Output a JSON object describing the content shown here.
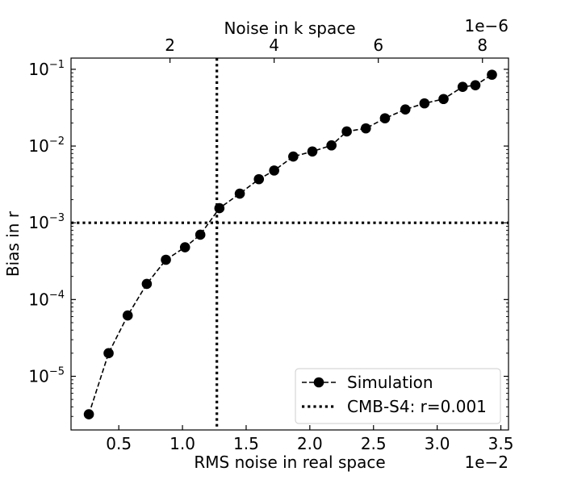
{
  "chart_data": {
    "type": "line",
    "title": "",
    "xlabel": "RMS noise in real space",
    "x_offset_label": "1e−2",
    "x_scale": 0.01,
    "top_xlabel": "Noise in k space",
    "top_offset_label": "1e−6",
    "top_scale": 1e-06,
    "ylabel": "Bias in r",
    "yscale": "log",
    "xlim": [
      0.00125,
      0.0356
    ],
    "ylim": [
      2e-06,
      0.14
    ],
    "top_xlim": [
      1e-07,
      8.5e-06
    ],
    "xticks": [
      0.005,
      0.01,
      0.015,
      0.02,
      0.025,
      0.03,
      0.035
    ],
    "xtick_labels": [
      "0.5",
      "1.0",
      "1.5",
      "2.0",
      "2.5",
      "3.0",
      "3.5"
    ],
    "top_xticks": [
      2e-06,
      4e-06,
      6e-06,
      8e-06
    ],
    "top_xtick_labels": [
      "2",
      "4",
      "6",
      "8"
    ],
    "yticks": [
      1e-05,
      0.0001,
      0.001,
      0.01,
      0.1
    ],
    "ytick_exponents": [
      "−5",
      "−4",
      "−3",
      "−2",
      "−1"
    ],
    "grid": false,
    "legend_position": "lower-right",
    "series": [
      {
        "name": "Simulation",
        "style": "dashed line with circle markers",
        "color": "#000000",
        "x": [
          0.00265,
          0.0042,
          0.0057,
          0.0072,
          0.0087,
          0.0102,
          0.0114,
          0.0129,
          0.0145,
          0.016,
          0.0172,
          0.0187,
          0.0202,
          0.0217,
          0.0229,
          0.0244,
          0.0259,
          0.0275,
          0.029,
          0.0305,
          0.032,
          0.033,
          0.0343
        ],
        "y": [
          3.2e-06,
          2e-05,
          6.2e-05,
          0.00016,
          0.00033,
          0.00048,
          0.0007,
          0.00155,
          0.0024,
          0.0037,
          0.0048,
          0.0073,
          0.0085,
          0.0102,
          0.0155,
          0.017,
          0.023,
          0.03,
          0.036,
          0.041,
          0.059,
          0.062,
          0.085
        ]
      },
      {
        "name": "CMB-S4: r=0.001",
        "style": "dotted reference lines",
        "color": "#000000",
        "y": 0.001,
        "x": 0.0127
      }
    ]
  }
}
